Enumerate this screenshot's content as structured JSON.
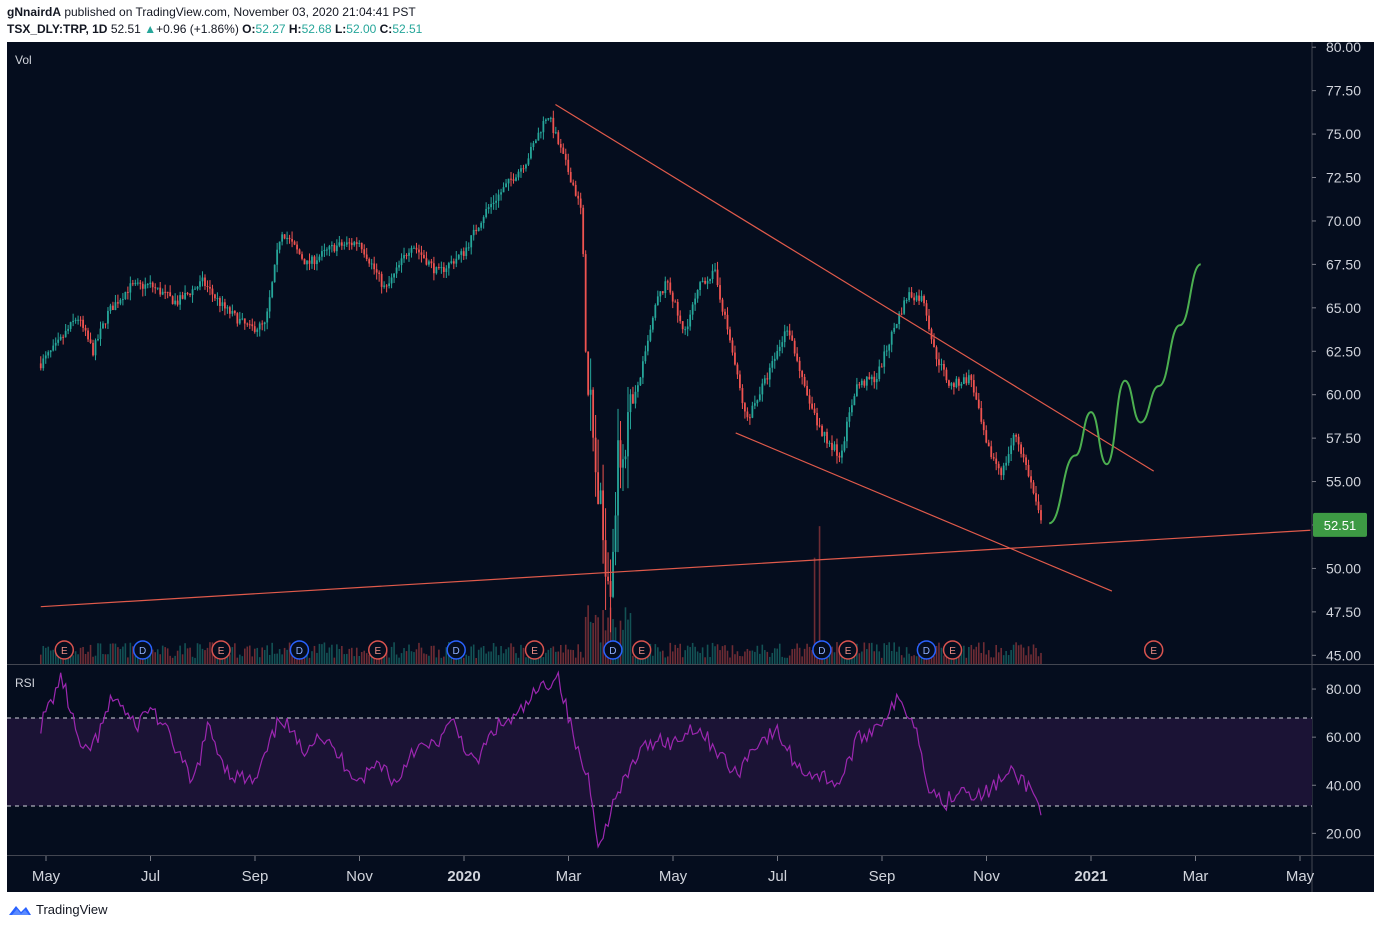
{
  "header": {
    "author": "gNnairdA",
    "published_text": " published on TradingView.com, November 03, 2020 21:04:41 PST",
    "symbol": "TSX_DLY:TRP, 1D",
    "last": "52.51",
    "change_arrow": "▲",
    "change": "+0.96 (+1.86%)",
    "o_label": "O:",
    "o_value": "52.27",
    "h_label": "H:",
    "h_value": "52.68",
    "l_label": "L:",
    "l_value": "52.00",
    "c_label": "C:",
    "c_value": "52.51"
  },
  "panes": {
    "main_label": "Vol",
    "rsi_label": "RSI"
  },
  "footer": {
    "brand": "TradingView"
  },
  "colors": {
    "background": "#050d1e",
    "up": "#26a69a",
    "down": "#ef5350",
    "trendline": "#e05a4b",
    "projection": "#4caf50",
    "rsi_line": "#9c27b0",
    "rsi_band": "#1b1335",
    "price_badge": "#3d9a44",
    "earnings_badge": "#d9534f",
    "dividend_badge": "#2962ff"
  },
  "chart_data": {
    "type": "candlestick",
    "title": "TSX_DLY:TRP, 1D",
    "ylim": [
      44.5,
      80.3
    ],
    "yticks": [
      "80.00",
      "77.50",
      "75.00",
      "72.50",
      "70.00",
      "67.50",
      "65.00",
      "62.50",
      "60.00",
      "57.50",
      "55.00",
      "52.50",
      "50.00",
      "47.50",
      "45.00"
    ],
    "ytick_values": [
      80,
      77.5,
      75,
      72.5,
      70,
      67.5,
      65,
      62.5,
      60,
      57.5,
      55,
      52.5,
      50,
      47.5,
      45
    ],
    "last_price_label": "52.51",
    "last_price": 52.51,
    "xticks": [
      {
        "label": "May",
        "month": 0,
        "bold": false
      },
      {
        "label": "Jul",
        "month": 2,
        "bold": false
      },
      {
        "label": "Sep",
        "month": 4,
        "bold": false
      },
      {
        "label": "Nov",
        "month": 6,
        "bold": false
      },
      {
        "label": "2020",
        "month": 8,
        "bold": true
      },
      {
        "label": "Mar",
        "month": 10,
        "bold": false
      },
      {
        "label": "May",
        "month": 12,
        "bold": false
      },
      {
        "label": "Jul",
        "month": 14,
        "bold": false
      },
      {
        "label": "Sep",
        "month": 16,
        "bold": false
      },
      {
        "label": "Nov",
        "month": 18,
        "bold": false
      },
      {
        "label": "2021",
        "month": 20,
        "bold": true
      },
      {
        "label": "Mar",
        "month": 22,
        "bold": false
      },
      {
        "label": "May",
        "month": 24,
        "bold": false
      }
    ],
    "price_path": [
      [
        -0.1,
        61.8
      ],
      [
        0.2,
        62.8
      ],
      [
        0.6,
        64.5
      ],
      [
        0.9,
        62.5
      ],
      [
        1.2,
        64.8
      ],
      [
        1.6,
        66.2
      ],
      [
        2.0,
        66.3
      ],
      [
        2.5,
        65.3
      ],
      [
        3.0,
        66.5
      ],
      [
        3.4,
        65.0
      ],
      [
        3.9,
        63.8
      ],
      [
        4.2,
        64.0
      ],
      [
        4.5,
        69.5
      ],
      [
        5.0,
        67.5
      ],
      [
        5.5,
        68.5
      ],
      [
        6.0,
        68.8
      ],
      [
        6.5,
        66.0
      ],
      [
        7.0,
        68.7
      ],
      [
        7.5,
        67.0
      ],
      [
        8.0,
        68.2
      ],
      [
        8.4,
        70.5
      ],
      [
        8.8,
        72.0
      ],
      [
        9.2,
        73.5
      ],
      [
        9.6,
        76.2
      ],
      [
        9.8,
        74.5
      ],
      [
        10.1,
        72.0
      ],
      [
        10.25,
        70.5
      ],
      [
        10.35,
        62.0
      ],
      [
        10.5,
        56.0
      ],
      [
        10.65,
        52.0
      ],
      [
        10.8,
        49.5
      ],
      [
        10.95,
        56.0
      ],
      [
        11.2,
        59.0
      ],
      [
        11.45,
        62.0
      ],
      [
        11.7,
        65.5
      ],
      [
        11.9,
        66.5
      ],
      [
        12.2,
        63.5
      ],
      [
        12.55,
        66.5
      ],
      [
        12.8,
        67.0
      ],
      [
        13.1,
        63.0
      ],
      [
        13.4,
        58.5
      ],
      [
        13.8,
        61.0
      ],
      [
        14.2,
        64.0
      ],
      [
        14.5,
        60.5
      ],
      [
        14.8,
        58.0
      ],
      [
        15.2,
        56.5
      ],
      [
        15.5,
        60.5
      ],
      [
        15.9,
        61.0
      ],
      [
        16.25,
        64.0
      ],
      [
        16.5,
        65.8
      ],
      [
        16.8,
        65.5
      ],
      [
        17.0,
        62.5
      ],
      [
        17.3,
        60.5
      ],
      [
        17.7,
        61.0
      ],
      [
        18.0,
        57.0
      ],
      [
        18.3,
        55.5
      ],
      [
        18.55,
        57.8
      ],
      [
        18.8,
        55.5
      ],
      [
        19.05,
        52.51
      ]
    ],
    "events": [
      {
        "t": "E",
        "m": 0.35
      },
      {
        "t": "D",
        "m": 1.85
      },
      {
        "t": "E",
        "m": 3.35
      },
      {
        "t": "D",
        "m": 4.85
      },
      {
        "t": "E",
        "m": 6.35
      },
      {
        "t": "D",
        "m": 7.85
      },
      {
        "t": "E",
        "m": 9.35
      },
      {
        "t": "D",
        "m": 10.85
      },
      {
        "t": "E",
        "m": 11.4
      },
      {
        "t": "D",
        "m": 14.85
      },
      {
        "t": "E",
        "m": 15.35
      },
      {
        "t": "D",
        "m": 16.85
      },
      {
        "t": "E",
        "m": 17.35
      },
      {
        "t": "E",
        "m": 21.2
      }
    ],
    "trendlines": [
      {
        "name": "upper-resistance",
        "points": [
          [
            9.75,
            76.7
          ],
          [
            21.2,
            55.6
          ]
        ]
      },
      {
        "name": "lower-wedge",
        "points": [
          [
            13.2,
            57.8
          ],
          [
            20.4,
            48.7
          ]
        ]
      },
      {
        "name": "long-support",
        "points": [
          [
            -0.1,
            47.8
          ],
          [
            24.2,
            52.2
          ]
        ]
      }
    ],
    "projection": [
      [
        19.2,
        52.6
      ],
      [
        19.7,
        56.5
      ],
      [
        20.0,
        59.0
      ],
      [
        20.3,
        56.0
      ],
      [
        20.65,
        60.8
      ],
      [
        20.95,
        58.4
      ],
      [
        21.3,
        60.5
      ],
      [
        21.7,
        64.0
      ],
      [
        22.1,
        67.5
      ]
    ],
    "rsi": {
      "ylim": [
        11,
        90
      ],
      "yticks": [
        "80.00",
        "60.00",
        "40.00",
        "20.00"
      ],
      "ytick_values": [
        80,
        60,
        40,
        20
      ],
      "overbought": 70,
      "oversold": 30,
      "path": [
        [
          -0.1,
          65
        ],
        [
          0.3,
          85
        ],
        [
          0.7,
          52
        ],
        [
          1.0,
          60
        ],
        [
          1.3,
          78
        ],
        [
          1.7,
          64
        ],
        [
          2.0,
          73
        ],
        [
          2.5,
          55
        ],
        [
          2.8,
          40
        ],
        [
          3.1,
          64
        ],
        [
          3.5,
          45
        ],
        [
          4.0,
          41
        ],
        [
          4.5,
          69
        ],
        [
          4.9,
          54
        ],
        [
          5.2,
          62
        ],
        [
          5.6,
          52
        ],
        [
          6.0,
          42
        ],
        [
          6.4,
          50
        ],
        [
          6.7,
          40
        ],
        [
          7.0,
          55
        ],
        [
          7.4,
          56
        ],
        [
          7.8,
          66
        ],
        [
          8.2,
          48
        ],
        [
          8.6,
          64
        ],
        [
          9.0,
          68
        ],
        [
          9.4,
          79
        ],
        [
          9.8,
          86
        ],
        [
          10.0,
          68
        ],
        [
          10.2,
          52
        ],
        [
          10.4,
          42
        ],
        [
          10.6,
          13
        ],
        [
          10.8,
          30
        ],
        [
          11.0,
          38
        ],
        [
          11.3,
          52
        ],
        [
          11.7,
          60
        ],
        [
          12.0,
          57
        ],
        [
          12.4,
          65
        ],
        [
          12.8,
          56
        ],
        [
          13.2,
          44
        ],
        [
          13.6,
          58
        ],
        [
          14.0,
          62
        ],
        [
          14.4,
          47
        ],
        [
          14.8,
          44
        ],
        [
          15.2,
          41
        ],
        [
          15.5,
          58
        ],
        [
          15.9,
          65
        ],
        [
          16.3,
          75
        ],
        [
          16.6,
          68
        ],
        [
          16.9,
          40
        ],
        [
          17.2,
          32
        ],
        [
          17.5,
          40
        ],
        [
          17.9,
          35
        ],
        [
          18.2,
          41
        ],
        [
          18.5,
          45
        ],
        [
          18.8,
          40
        ],
        [
          19.05,
          30
        ]
      ]
    },
    "xlabel": "",
    "ylabel": ""
  }
}
